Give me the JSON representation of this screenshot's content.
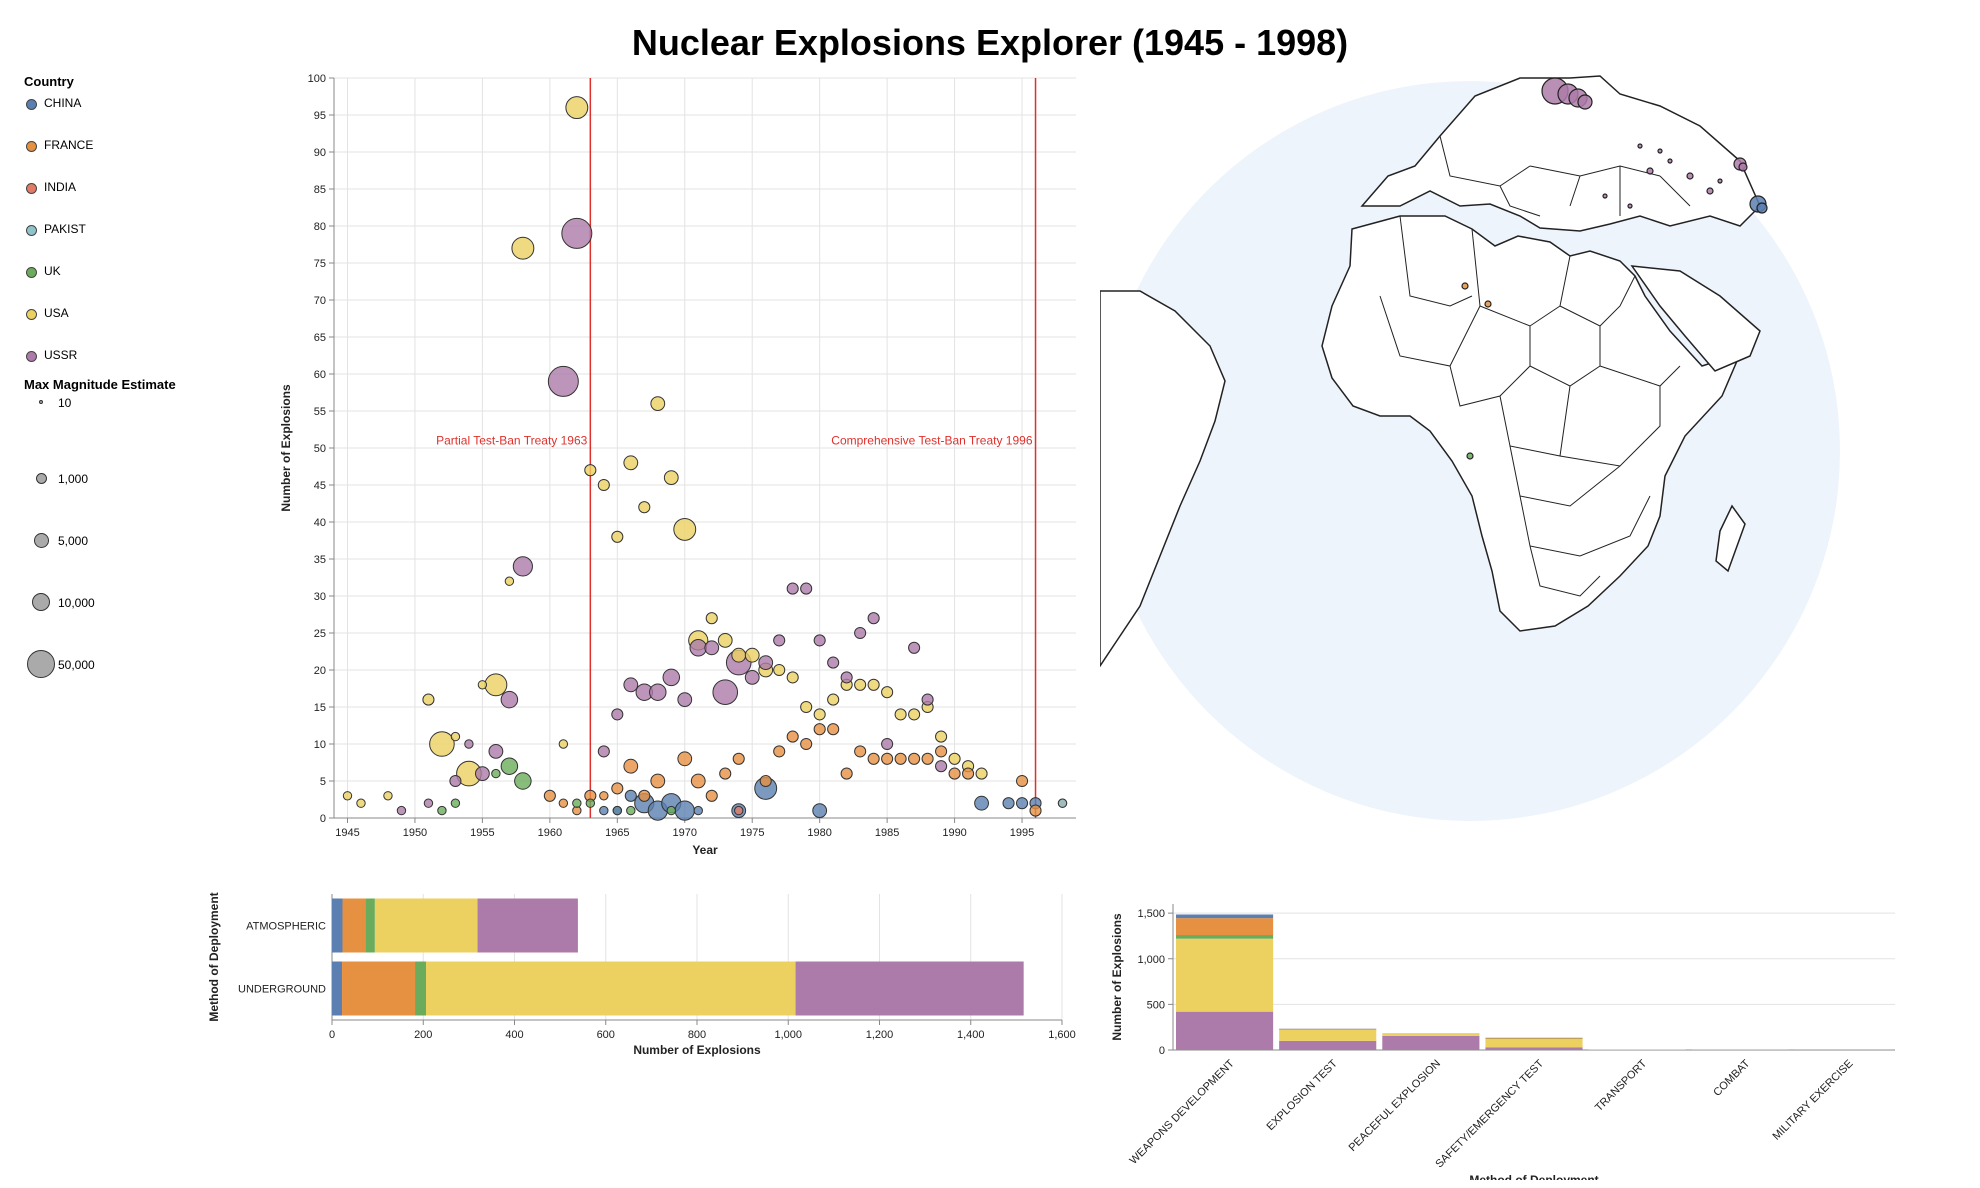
{
  "title": "Nuclear Explosions Explorer (1945 - 1998)",
  "colors": {
    "CHINA": "#5b7fb0",
    "FRANCE": "#e69042",
    "INDIA": "#e17a67",
    "PAKIST": "#8fc5c9",
    "UK": "#6aac5b",
    "USA": "#ecd161",
    "USSR": "#ad7ba9"
  },
  "legend": {
    "country_title": "Country",
    "countries": [
      "CHINA",
      "FRANCE",
      "INDIA",
      "PAKIST",
      "UK",
      "USA",
      "USSR"
    ],
    "size_title": "Max Magnitude Estimate",
    "sizes": [
      "10",
      "1,000",
      "5,000",
      "10,000",
      "50,000"
    ]
  },
  "chart_data": [
    {
      "type": "scatter",
      "xlabel": "Year",
      "ylabel": "Number of Explosions",
      "xlim": [
        1944,
        1999
      ],
      "ylim": [
        0,
        100
      ],
      "xticks": [
        "1945",
        "1950",
        "1955",
        "1960",
        "1965",
        "1970",
        "1975",
        "1980",
        "1985",
        "1990",
        "1995"
      ],
      "yticks": [
        "0",
        "5",
        "10",
        "15",
        "20",
        "25",
        "30",
        "35",
        "40",
        "45",
        "50",
        "55",
        "60",
        "65",
        "70",
        "75",
        "80",
        "85",
        "90",
        "95",
        "100"
      ],
      "grid": true,
      "annotations": [
        {
          "text": "Partial Test-Ban Treaty 1963",
          "x": 1963
        },
        {
          "text": "Comprehensive Test-Ban Treaty 1996",
          "x": 1996
        }
      ],
      "points": [
        {
          "c": "USA",
          "x": 1945,
          "y": 3,
          "s": 2
        },
        {
          "c": "USA",
          "x": 1946,
          "y": 2,
          "s": 2
        },
        {
          "c": "USA",
          "x": 1948,
          "y": 3,
          "s": 2
        },
        {
          "c": "USSR",
          "x": 1949,
          "y": 1,
          "s": 2
        },
        {
          "c": "USA",
          "x": 1951,
          "y": 16,
          "s": 3
        },
        {
          "c": "USSR",
          "x": 1951,
          "y": 2,
          "s": 2
        },
        {
          "c": "USA",
          "x": 1952,
          "y": 10,
          "s": 8
        },
        {
          "c": "UK",
          "x": 1952,
          "y": 1,
          "s": 2
        },
        {
          "c": "USA",
          "x": 1953,
          "y": 11,
          "s": 2
        },
        {
          "c": "USSR",
          "x": 1953,
          "y": 5,
          "s": 3
        },
        {
          "c": "UK",
          "x": 1953,
          "y": 2,
          "s": 2
        },
        {
          "c": "USA",
          "x": 1954,
          "y": 6,
          "s": 8
        },
        {
          "c": "USSR",
          "x": 1954,
          "y": 10,
          "s": 2
        },
        {
          "c": "USSR",
          "x": 1955,
          "y": 6,
          "s": 4
        },
        {
          "c": "USA",
          "x": 1955,
          "y": 18,
          "s": 2
        },
        {
          "c": "USA",
          "x": 1956,
          "y": 18,
          "s": 7
        },
        {
          "c": "USSR",
          "x": 1956,
          "y": 9,
          "s": 4
        },
        {
          "c": "UK",
          "x": 1956,
          "y": 6,
          "s": 2
        },
        {
          "c": "USA",
          "x": 1957,
          "y": 32,
          "s": 2
        },
        {
          "c": "USSR",
          "x": 1957,
          "y": 16,
          "s": 5
        },
        {
          "c": "UK",
          "x": 1957,
          "y": 7,
          "s": 5
        },
        {
          "c": "USA",
          "x": 1958,
          "y": 77,
          "s": 7
        },
        {
          "c": "USSR",
          "x": 1958,
          "y": 34,
          "s": 6
        },
        {
          "c": "UK",
          "x": 1958,
          "y": 5,
          "s": 5
        },
        {
          "c": "FRANCE",
          "x": 1960,
          "y": 3,
          "s": 3
        },
        {
          "c": "USA",
          "x": 1961,
          "y": 10,
          "s": 2
        },
        {
          "c": "USSR",
          "x": 1961,
          "y": 59,
          "s": 10
        },
        {
          "c": "FRANCE",
          "x": 1961,
          "y": 2,
          "s": 2
        },
        {
          "c": "USA",
          "x": 1962,
          "y": 96,
          "s": 7
        },
        {
          "c": "USSR",
          "x": 1962,
          "y": 79,
          "s": 10
        },
        {
          "c": "FRANCE",
          "x": 1962,
          "y": 1,
          "s": 2
        },
        {
          "c": "UK",
          "x": 1962,
          "y": 2,
          "s": 2
        },
        {
          "c": "USA",
          "x": 1963,
          "y": 47,
          "s": 3
        },
        {
          "c": "FRANCE",
          "x": 1963,
          "y": 3,
          "s": 3
        },
        {
          "c": "UK",
          "x": 1963,
          "y": 2,
          "s": 2
        },
        {
          "c": "USA",
          "x": 1964,
          "y": 45,
          "s": 3
        },
        {
          "c": "USSR",
          "x": 1964,
          "y": 9,
          "s": 3
        },
        {
          "c": "CHINA",
          "x": 1964,
          "y": 1,
          "s": 2
        },
        {
          "c": "FRANCE",
          "x": 1964,
          "y": 3,
          "s": 2
        },
        {
          "c": "USA",
          "x": 1965,
          "y": 38,
          "s": 3
        },
        {
          "c": "USSR",
          "x": 1965,
          "y": 14,
          "s": 3
        },
        {
          "c": "FRANCE",
          "x": 1965,
          "y": 4,
          "s": 3
        },
        {
          "c": "UK",
          "x": 1965,
          "y": 1,
          "s": 2
        },
        {
          "c": "CHINA",
          "x": 1965,
          "y": 1,
          "s": 2
        },
        {
          "c": "USA",
          "x": 1966,
          "y": 48,
          "s": 4
        },
        {
          "c": "USSR",
          "x": 1966,
          "y": 18,
          "s": 4
        },
        {
          "c": "FRANCE",
          "x": 1966,
          "y": 7,
          "s": 4
        },
        {
          "c": "CHINA",
          "x": 1966,
          "y": 3,
          "s": 3
        },
        {
          "c": "UK",
          "x": 1966,
          "y": 1,
          "s": 2
        },
        {
          "c": "USA",
          "x": 1967,
          "y": 42,
          "s": 3
        },
        {
          "c": "USSR",
          "x": 1967,
          "y": 17,
          "s": 5
        },
        {
          "c": "CHINA",
          "x": 1967,
          "y": 2,
          "s": 6
        },
        {
          "c": "FRANCE",
          "x": 1967,
          "y": 3,
          "s": 3
        },
        {
          "c": "USA",
          "x": 1968,
          "y": 56,
          "s": 4
        },
        {
          "c": "USSR",
          "x": 1968,
          "y": 17,
          "s": 5
        },
        {
          "c": "FRANCE",
          "x": 1968,
          "y": 5,
          "s": 4
        },
        {
          "c": "CHINA",
          "x": 1968,
          "y": 1,
          "s": 6
        },
        {
          "c": "USA",
          "x": 1969,
          "y": 46,
          "s": 4
        },
        {
          "c": "USSR",
          "x": 1969,
          "y": 19,
          "s": 5
        },
        {
          "c": "CHINA",
          "x": 1969,
          "y": 2,
          "s": 6
        },
        {
          "c": "UK",
          "x": 1969,
          "y": 1,
          "s": 2
        },
        {
          "c": "USA",
          "x": 1970,
          "y": 39,
          "s": 7
        },
        {
          "c": "USSR",
          "x": 1970,
          "y": 16,
          "s": 4
        },
        {
          "c": "FRANCE",
          "x": 1970,
          "y": 8,
          "s": 4
        },
        {
          "c": "CHINA",
          "x": 1970,
          "y": 1,
          "s": 6
        },
        {
          "c": "USA",
          "x": 1971,
          "y": 24,
          "s": 6
        },
        {
          "c": "USSR",
          "x": 1971,
          "y": 23,
          "s": 5
        },
        {
          "c": "FRANCE",
          "x": 1971,
          "y": 5,
          "s": 4
        },
        {
          "c": "CHINA",
          "x": 1971,
          "y": 1,
          "s": 2
        },
        {
          "c": "USA",
          "x": 1972,
          "y": 27,
          "s": 3
        },
        {
          "c": "USSR",
          "x": 1972,
          "y": 23,
          "s": 4
        },
        {
          "c": "FRANCE",
          "x": 1972,
          "y": 3,
          "s": 3
        },
        {
          "c": "USA",
          "x": 1973,
          "y": 24,
          "s": 4
        },
        {
          "c": "USSR",
          "x": 1973,
          "y": 17,
          "s": 8
        },
        {
          "c": "FRANCE",
          "x": 1973,
          "y": 6,
          "s": 3
        },
        {
          "c": "USSR",
          "x": 1974,
          "y": 21,
          "s": 8
        },
        {
          "c": "USA",
          "x": 1974,
          "y": 22,
          "s": 4
        },
        {
          "c": "CHINA",
          "x": 1974,
          "y": 1,
          "s": 4
        },
        {
          "c": "FRANCE",
          "x": 1974,
          "y": 8,
          "s": 3
        },
        {
          "c": "USA",
          "x": 1975,
          "y": 22,
          "s": 4
        },
        {
          "c": "USSR",
          "x": 1975,
          "y": 19,
          "s": 4
        },
        {
          "c": "INDIA",
          "x": 1974,
          "y": 1,
          "s": 2
        },
        {
          "c": "USA",
          "x": 1976,
          "y": 20,
          "s": 4
        },
        {
          "c": "USSR",
          "x": 1976,
          "y": 21,
          "s": 4
        },
        {
          "c": "CHINA",
          "x": 1976,
          "y": 4,
          "s": 7
        },
        {
          "c": "FRANCE",
          "x": 1976,
          "y": 5,
          "s": 3
        },
        {
          "c": "USA",
          "x": 1977,
          "y": 20,
          "s": 3
        },
        {
          "c": "USSR",
          "x": 1977,
          "y": 24,
          "s": 3
        },
        {
          "c": "FRANCE",
          "x": 1977,
          "y": 9,
          "s": 3
        },
        {
          "c": "USA",
          "x": 1978,
          "y": 19,
          "s": 3
        },
        {
          "c": "USSR",
          "x": 1978,
          "y": 31,
          "s": 3
        },
        {
          "c": "FRANCE",
          "x": 1978,
          "y": 11,
          "s": 3
        },
        {
          "c": "USA",
          "x": 1979,
          "y": 15,
          "s": 3
        },
        {
          "c": "USSR",
          "x": 1979,
          "y": 31,
          "s": 3
        },
        {
          "c": "FRANCE",
          "x": 1979,
          "y": 10,
          "s": 3
        },
        {
          "c": "USA",
          "x": 1980,
          "y": 14,
          "s": 3
        },
        {
          "c": "USSR",
          "x": 1980,
          "y": 24,
          "s": 3
        },
        {
          "c": "FRANCE",
          "x": 1980,
          "y": 12,
          "s": 3
        },
        {
          "c": "CHINA",
          "x": 1980,
          "y": 1,
          "s": 4
        },
        {
          "c": "USA",
          "x": 1981,
          "y": 16,
          "s": 3
        },
        {
          "c": "USSR",
          "x": 1981,
          "y": 21,
          "s": 3
        },
        {
          "c": "FRANCE",
          "x": 1981,
          "y": 12,
          "s": 3
        },
        {
          "c": "USA",
          "x": 1982,
          "y": 18,
          "s": 3
        },
        {
          "c": "USSR",
          "x": 1982,
          "y": 19,
          "s": 3
        },
        {
          "c": "FRANCE",
          "x": 1982,
          "y": 6,
          "s": 3
        },
        {
          "c": "USA",
          "x": 1983,
          "y": 18,
          "s": 3
        },
        {
          "c": "USSR",
          "x": 1983,
          "y": 25,
          "s": 3
        },
        {
          "c": "FRANCE",
          "x": 1983,
          "y": 9,
          "s": 3
        },
        {
          "c": "USA",
          "x": 1984,
          "y": 18,
          "s": 3
        },
        {
          "c": "USSR",
          "x": 1984,
          "y": 27,
          "s": 3
        },
        {
          "c": "FRANCE",
          "x": 1984,
          "y": 8,
          "s": 3
        },
        {
          "c": "USA",
          "x": 1985,
          "y": 17,
          "s": 3
        },
        {
          "c": "USSR",
          "x": 1985,
          "y": 10,
          "s": 3
        },
        {
          "c": "FRANCE",
          "x": 1985,
          "y": 8,
          "s": 3
        },
        {
          "c": "USA",
          "x": 1986,
          "y": 14,
          "s": 3
        },
        {
          "c": "FRANCE",
          "x": 1986,
          "y": 8,
          "s": 3
        },
        {
          "c": "USA",
          "x": 1987,
          "y": 14,
          "s": 3
        },
        {
          "c": "USSR",
          "x": 1987,
          "y": 23,
          "s": 3
        },
        {
          "c": "FRANCE",
          "x": 1987,
          "y": 8,
          "s": 3
        },
        {
          "c": "USA",
          "x": 1988,
          "y": 15,
          "s": 3
        },
        {
          "c": "USSR",
          "x": 1988,
          "y": 16,
          "s": 3
        },
        {
          "c": "FRANCE",
          "x": 1988,
          "y": 8,
          "s": 3
        },
        {
          "c": "USA",
          "x": 1989,
          "y": 11,
          "s": 3
        },
        {
          "c": "USSR",
          "x": 1989,
          "y": 7,
          "s": 3
        },
        {
          "c": "FRANCE",
          "x": 1989,
          "y": 9,
          "s": 3
        },
        {
          "c": "USA",
          "x": 1990,
          "y": 8,
          "s": 3
        },
        {
          "c": "FRANCE",
          "x": 1990,
          "y": 6,
          "s": 3
        },
        {
          "c": "USA",
          "x": 1991,
          "y": 7,
          "s": 3
        },
        {
          "c": "FRANCE",
          "x": 1991,
          "y": 6,
          "s": 3
        },
        {
          "c": "CHINA",
          "x": 1992,
          "y": 2,
          "s": 4
        },
        {
          "c": "USA",
          "x": 1992,
          "y": 6,
          "s": 3
        },
        {
          "c": "CHINA",
          "x": 1994,
          "y": 2,
          "s": 3
        },
        {
          "c": "FRANCE",
          "x": 1995,
          "y": 5,
          "s": 3
        },
        {
          "c": "CHINA",
          "x": 1995,
          "y": 2,
          "s": 3
        },
        {
          "c": "CHINA",
          "x": 1996,
          "y": 2,
          "s": 3
        },
        {
          "c": "FRANCE",
          "x": 1996,
          "y": 1,
          "s": 3
        },
        {
          "c": "INDIA",
          "x": 1998,
          "y": 2,
          "s": 2
        },
        {
          "c": "PAKIST",
          "x": 1998,
          "y": 2,
          "s": 2
        }
      ]
    },
    {
      "type": "bar",
      "orientation": "horizontal",
      "stacked": true,
      "xlabel": "Number of Explosions",
      "ylabel": "Method of Deployment",
      "categories": [
        "ATMOSPHERIC",
        "UNDERGROUND"
      ],
      "xlim": [
        0,
        1600
      ],
      "xticks": [
        "0",
        "200",
        "400",
        "600",
        "800",
        "1,000",
        "1,200",
        "1,400",
        "1,600"
      ],
      "series": [
        {
          "name": "CHINA",
          "values": [
            23,
            22
          ]
        },
        {
          "name": "FRANCE",
          "values": [
            50,
            160
          ]
        },
        {
          "name": "UK",
          "values": [
            21,
            24
          ]
        },
        {
          "name": "USA",
          "values": [
            225,
            810
          ]
        },
        {
          "name": "USSR",
          "values": [
            220,
            500
          ]
        }
      ]
    },
    {
      "type": "bar",
      "stacked": true,
      "xlabel": "Method of Deployment",
      "ylabel": "Number of Explosions",
      "categories": [
        "WEAPONS DEVELOPMENT",
        "EXPLOSION TEST",
        "PEACEFUL EXPLOSION",
        "SAFETY/EMERGENCY TEST",
        "TRANSPORT",
        "COMBAT",
        "MILITARY EXERCISE"
      ],
      "ylim": [
        0,
        1600
      ],
      "yticks": [
        "0",
        "500",
        "1,000",
        "1,500"
      ],
      "series": [
        {
          "name": "USSR",
          "values": [
            420,
            100,
            155,
            30,
            2,
            0,
            1
          ]
        },
        {
          "name": "USA",
          "values": [
            800,
            120,
            30,
            90,
            3,
            2,
            1
          ]
        },
        {
          "name": "UK",
          "values": [
            40,
            2,
            0,
            5,
            0,
            0,
            0
          ]
        },
        {
          "name": "FRANCE",
          "values": [
            185,
            10,
            0,
            10,
            0,
            0,
            0
          ]
        },
        {
          "name": "CHINA",
          "values": [
            40,
            2,
            0,
            0,
            0,
            0,
            0
          ]
        }
      ]
    }
  ]
}
